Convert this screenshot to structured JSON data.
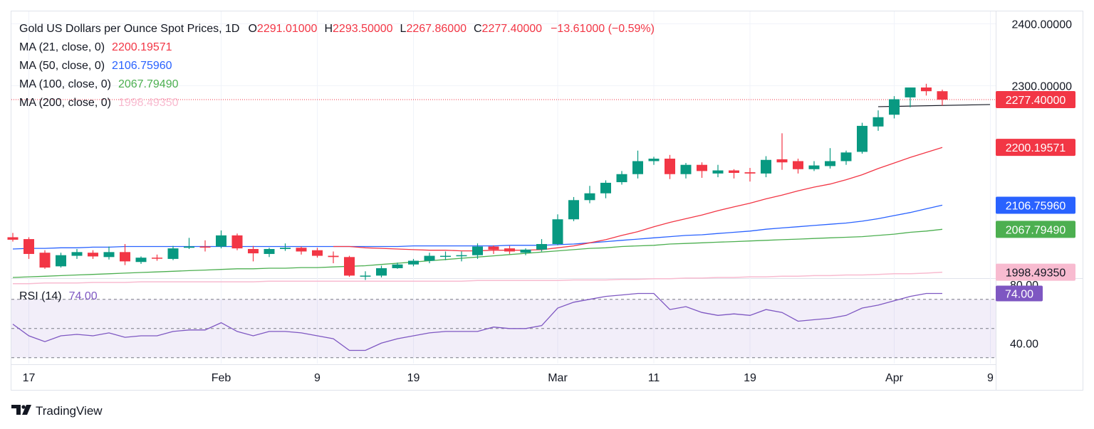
{
  "colors": {
    "up": "#089981",
    "down": "#f23645",
    "ma21": "#f23645",
    "ma50": "#2962ff",
    "ma100": "#4caf50",
    "ma200": "#f8bbd0",
    "rsi": "#7e57c2",
    "text": "#131722",
    "muted": "#5d606b"
  },
  "legend": {
    "title": "Gold US Dollars per Ounce Spot Prices, 1D",
    "o_label": "O",
    "o_value": "2291.01000",
    "h_label": "H",
    "h_value": "2293.50000",
    "l_label": "L",
    "l_value": "2267.86000",
    "c_label": "C",
    "c_value": "2277.40000",
    "change": "−13.61000 (−0.59%)",
    "ma21_label": "MA (21, close, 0)",
    "ma21_value": "2200.19571",
    "ma50_label": "MA (50, close, 0)",
    "ma50_value": "2106.75960",
    "ma100_label": "MA (100, close, 0)",
    "ma100_value": "2067.79490",
    "ma200_label": "MA (200, close, 0)",
    "ma200_value": "1998.49350",
    "rsi_label": "RSI (14)",
    "rsi_value": "74.00"
  },
  "branding": {
    "logo_text": "TradingView"
  },
  "chart_data": [
    {
      "type": "candlestick",
      "price_axis_ticks": [
        "2400.00000",
        "2300.00000"
      ],
      "price_labels": [
        {
          "text": "2277.40000",
          "value": 2277.4,
          "color": "#f23645"
        },
        {
          "text": "2200.19571",
          "value": 2200.19571,
          "color": "#f23645"
        },
        {
          "text": "2106.75960",
          "value": 2106.7596,
          "color": "#2962ff"
        },
        {
          "text": "2067.79490",
          "value": 2067.7949,
          "color": "#4caf50"
        },
        {
          "text": "1998.49350",
          "value": 1998.4935,
          "color": "#f8bbd0"
        }
      ],
      "ylim": [
        1990,
        2420
      ],
      "x_axis_labels": [
        {
          "text": "17",
          "index": 1
        },
        {
          "text": "Feb",
          "index": 13
        },
        {
          "text": "9",
          "index": 19
        },
        {
          "text": "19",
          "index": 25
        },
        {
          "text": "Mar",
          "index": 34
        },
        {
          "text": "11",
          "index": 40
        },
        {
          "text": "19",
          "index": 46
        },
        {
          "text": "Apr",
          "index": 55
        },
        {
          "text": "9",
          "index": 61
        }
      ],
      "candles": [
        {
          "o": 2055,
          "h": 2062,
          "l": 2048,
          "c": 2051
        },
        {
          "o": 2052,
          "h": 2055,
          "l": 2020,
          "c": 2028
        },
        {
          "o": 2030,
          "h": 2034,
          "l": 2004,
          "c": 2006
        },
        {
          "o": 2008,
          "h": 2030,
          "l": 2006,
          "c": 2026
        },
        {
          "o": 2025,
          "h": 2036,
          "l": 2020,
          "c": 2031
        },
        {
          "o": 2030,
          "h": 2034,
          "l": 2020,
          "c": 2024
        },
        {
          "o": 2023,
          "h": 2040,
          "l": 2019,
          "c": 2031
        },
        {
          "o": 2031,
          "h": 2044,
          "l": 2010,
          "c": 2016
        },
        {
          "o": 2015,
          "h": 2024,
          "l": 2012,
          "c": 2022
        },
        {
          "o": 2022,
          "h": 2027,
          "l": 2017,
          "c": 2021
        },
        {
          "o": 2020,
          "h": 2041,
          "l": 2018,
          "c": 2037
        },
        {
          "o": 2038,
          "h": 2054,
          "l": 2036,
          "c": 2040
        },
        {
          "o": 2040,
          "h": 2050,
          "l": 2032,
          "c": 2039
        },
        {
          "o": 2040,
          "h": 2066,
          "l": 2037,
          "c": 2058
        },
        {
          "o": 2058,
          "h": 2061,
          "l": 2034,
          "c": 2037
        },
        {
          "o": 2036,
          "h": 2041,
          "l": 2016,
          "c": 2029
        },
        {
          "o": 2028,
          "h": 2038,
          "l": 2023,
          "c": 2036
        },
        {
          "o": 2036,
          "h": 2045,
          "l": 2033,
          "c": 2038
        },
        {
          "o": 2038,
          "h": 2040,
          "l": 2027,
          "c": 2032
        },
        {
          "o": 2034,
          "h": 2038,
          "l": 2022,
          "c": 2025
        },
        {
          "o": 2025,
          "h": 2032,
          "l": 2013,
          "c": 2023
        },
        {
          "o": 2023,
          "h": 2025,
          "l": 1991,
          "c": 1993
        },
        {
          "o": 1993,
          "h": 2000,
          "l": 1986,
          "c": 1993
        },
        {
          "o": 1993,
          "h": 2009,
          "l": 1990,
          "c": 2005
        },
        {
          "o": 2005,
          "h": 2014,
          "l": 2004,
          "c": 2011
        },
        {
          "o": 2011,
          "h": 2020,
          "l": 2008,
          "c": 2017
        },
        {
          "o": 2017,
          "h": 2030,
          "l": 2013,
          "c": 2025
        },
        {
          "o": 2025,
          "h": 2032,
          "l": 2018,
          "c": 2025
        },
        {
          "o": 2025,
          "h": 2032,
          "l": 2016,
          "c": 2026
        },
        {
          "o": 2026,
          "h": 2045,
          "l": 2020,
          "c": 2040
        },
        {
          "o": 2040,
          "h": 2042,
          "l": 2028,
          "c": 2035
        },
        {
          "o": 2037,
          "h": 2041,
          "l": 2028,
          "c": 2032
        },
        {
          "o": 2030,
          "h": 2037,
          "l": 2026,
          "c": 2035
        },
        {
          "o": 2035,
          "h": 2052,
          "l": 2032,
          "c": 2044
        },
        {
          "o": 2044,
          "h": 2092,
          "l": 2042,
          "c": 2084
        },
        {
          "o": 2084,
          "h": 2120,
          "l": 2081,
          "c": 2115
        },
        {
          "o": 2115,
          "h": 2138,
          "l": 2110,
          "c": 2126
        },
        {
          "o": 2126,
          "h": 2147,
          "l": 2118,
          "c": 2143
        },
        {
          "o": 2144,
          "h": 2162,
          "l": 2140,
          "c": 2157
        },
        {
          "o": 2157,
          "h": 2195,
          "l": 2150,
          "c": 2178
        },
        {
          "o": 2178,
          "h": 2185,
          "l": 2172,
          "c": 2182
        },
        {
          "o": 2182,
          "h": 2188,
          "l": 2149,
          "c": 2157
        },
        {
          "o": 2157,
          "h": 2175,
          "l": 2150,
          "c": 2172
        },
        {
          "o": 2172,
          "h": 2176,
          "l": 2151,
          "c": 2162
        },
        {
          "o": 2158,
          "h": 2172,
          "l": 2152,
          "c": 2163
        },
        {
          "o": 2163,
          "h": 2165,
          "l": 2150,
          "c": 2159
        },
        {
          "o": 2160,
          "h": 2167,
          "l": 2145,
          "c": 2158
        },
        {
          "o": 2158,
          "h": 2186,
          "l": 2152,
          "c": 2180
        },
        {
          "o": 2181,
          "h": 2223,
          "l": 2164,
          "c": 2176
        },
        {
          "o": 2178,
          "h": 2182,
          "l": 2158,
          "c": 2165
        },
        {
          "o": 2165,
          "h": 2178,
          "l": 2162,
          "c": 2171
        },
        {
          "o": 2170,
          "h": 2199,
          "l": 2166,
          "c": 2178
        },
        {
          "o": 2178,
          "h": 2195,
          "l": 2172,
          "c": 2192
        },
        {
          "o": 2193,
          "h": 2240,
          "l": 2190,
          "c": 2235
        },
        {
          "o": 2234,
          "h": 2260,
          "l": 2227,
          "c": 2249
        },
        {
          "o": 2253,
          "h": 2283,
          "l": 2247,
          "c": 2278
        },
        {
          "o": 2281,
          "h": 2297,
          "l": 2265,
          "c": 2297
        },
        {
          "o": 2297,
          "h": 2303,
          "l": 2284,
          "c": 2291
        },
        {
          "o": 2291,
          "h": 2293.5,
          "l": 2267.86,
          "c": 2277.4
        }
      ],
      "ma21": [
        null,
        null,
        null,
        null,
        null,
        null,
        null,
        null,
        null,
        null,
        null,
        null,
        null,
        null,
        null,
        null,
        null,
        null,
        null,
        null,
        2040,
        2040,
        2038,
        2037,
        2036,
        2035,
        2034,
        2034,
        2033,
        2033,
        2034,
        2034,
        2034,
        2035,
        2038,
        2041,
        2046,
        2051,
        2058,
        2064,
        2072,
        2079,
        2085,
        2091,
        2098,
        2104,
        2110,
        2117,
        2123,
        2130,
        2136,
        2141,
        2148,
        2156,
        2166,
        2175,
        2184,
        2192,
        2200.19571
      ],
      "ma50": [
        2036,
        2037,
        2037,
        2038,
        2038,
        2039,
        2039,
        2040,
        2040,
        2040,
        2040,
        2040,
        2040,
        2040,
        2040,
        2040,
        2040,
        2040,
        2040,
        2040,
        2040,
        2040,
        2040,
        2040,
        2040,
        2041,
        2041,
        2041,
        2041,
        2041,
        2041,
        2042,
        2042,
        2042,
        2043,
        2044,
        2046,
        2048,
        2050,
        2052,
        2054,
        2056,
        2058,
        2059,
        2061,
        2063,
        2065,
        2068,
        2070,
        2072,
        2074,
        2076,
        2078,
        2081,
        2085,
        2090,
        2095,
        2101,
        2106.7596
      ],
      "ma100": [
        1990,
        1991,
        1992,
        1993,
        1994,
        1995,
        1996,
        1997,
        1998,
        1999,
        2000,
        2001,
        2002,
        2003,
        2004,
        2004,
        2005,
        2005,
        2006,
        2006,
        2007,
        2008,
        2009,
        2011,
        2013,
        2015,
        2017,
        2019,
        2021,
        2023,
        2025,
        2027,
        2029,
        2031,
        2033,
        2035,
        2037,
        2038,
        2040,
        2041,
        2042,
        2044,
        2045,
        2046,
        2047,
        2048,
        2049,
        2050,
        2051,
        2052,
        2053,
        2054,
        2055,
        2056,
        2058,
        2060,
        2063,
        2065,
        2067.7949
      ],
      "ma200": [
        1980,
        1980,
        1981,
        1981,
        1981,
        1982,
        1982,
        1982,
        1983,
        1983,
        1983,
        1983,
        1983,
        1983,
        1983,
        1983,
        1984,
        1984,
        1984,
        1984,
        1984,
        1984,
        1984,
        1984,
        1984,
        1984,
        1984,
        1984,
        1984,
        1985,
        1985,
        1985,
        1985,
        1985,
        1985,
        1986,
        1986,
        1986,
        1987,
        1987,
        1988,
        1988,
        1989,
        1989,
        1990,
        1990,
        1991,
        1991,
        1992,
        1992,
        1993,
        1993,
        1994,
        1994,
        1995,
        1996,
        1996,
        1997,
        1998.4935
      ],
      "horizontal_line": 2266
    },
    {
      "type": "line",
      "name": "RSI (14)",
      "y_axis_ticks": [
        {
          "text": "80.00",
          "value": 80
        },
        {
          "text": "40.00",
          "value": 40
        }
      ],
      "levels": [
        70,
        50,
        30
      ],
      "ylim": [
        26,
        84
      ],
      "last_label": "74.00",
      "values": [
        53,
        45,
        41,
        45,
        46,
        45,
        47,
        44,
        45,
        45,
        48,
        49,
        49,
        54,
        48,
        45,
        48,
        48,
        47,
        45,
        43,
        35,
        35,
        40,
        43,
        45,
        47,
        48,
        48,
        48,
        51,
        50,
        50,
        52,
        64,
        68,
        70,
        72,
        73,
        74,
        74,
        63,
        65,
        61,
        59,
        60,
        59,
        63,
        61,
        55,
        56,
        57,
        59,
        64,
        66,
        69,
        72,
        74,
        74
      ]
    }
  ]
}
